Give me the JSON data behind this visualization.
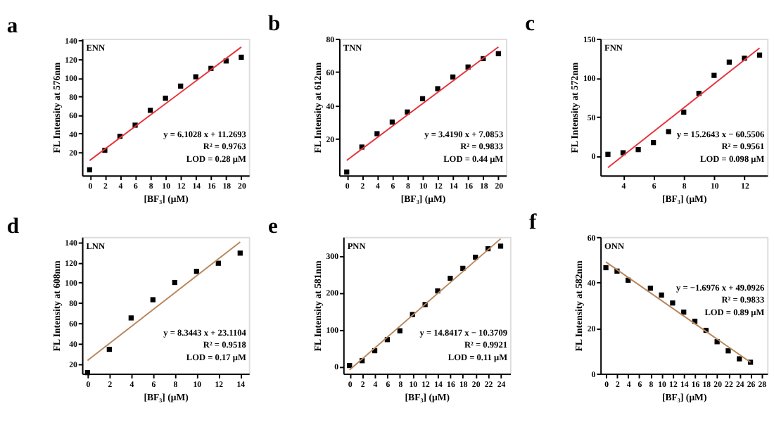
{
  "chart_data": [
    {
      "type": "scatter",
      "title": "a",
      "xlabel": "[BF₃] (μM)",
      "ylabel": "FL Intensity at 576nm",
      "grid": false,
      "xlim": [
        -1,
        21
      ],
      "ylim": [
        -5,
        142
      ],
      "xticks": [
        0,
        2,
        4,
        6,
        8,
        10,
        12,
        14,
        16,
        18,
        20
      ],
      "yticks": [
        20,
        40,
        60,
        80,
        100,
        120,
        140
      ],
      "x": [
        0,
        2,
        4,
        6,
        8,
        10,
        12,
        14,
        16,
        18,
        20
      ],
      "annotations": [
        "ENN",
        "y = 6.1028 x + 11.2693",
        "R² = 0.9763",
        "LOD = 0.28 μM"
      ],
      "series": [
        {
          "marker": "square",
          "color": "#000000",
          "values": [
            1,
            22,
            37,
            49,
            65,
            78,
            91,
            101,
            110,
            118,
            122
          ]
        },
        {
          "type": "line",
          "marker": "none",
          "line_style": "solid",
          "color": "#e8323c",
          "x": [
            0,
            20
          ],
          "values": [
            11,
            133
          ]
        }
      ]
    },
    {
      "type": "scatter",
      "title": "b",
      "xlabel": "[BF₃] (μM)",
      "ylabel": "FL Intensity at 612nm",
      "grid": false,
      "xlim": [
        -1,
        21
      ],
      "ylim": [
        -2,
        80
      ],
      "xticks": [
        0,
        2,
        4,
        6,
        8,
        10,
        12,
        14,
        16,
        18,
        20
      ],
      "yticks": [
        20,
        40,
        60,
        80
      ],
      "x": [
        0,
        2,
        4,
        6,
        8,
        10,
        12,
        14,
        16,
        18,
        20
      ],
      "annotations": [
        "TNN",
        "y = 3.4190 x + 7.0853",
        "R² = 0.9833",
        "LOD = 0.44 μM"
      ],
      "series": [
        {
          "marker": "square",
          "color": "#000000",
          "values": [
            0,
            15,
            23,
            30,
            36,
            44,
            50,
            57,
            63,
            68,
            71
          ]
        },
        {
          "type": "line",
          "marker": "none",
          "line_style": "solid",
          "color": "#e8323c",
          "x": [
            0,
            20
          ],
          "values": [
            7,
            75
          ]
        }
      ]
    },
    {
      "type": "scatter",
      "title": "c",
      "xlabel": "[BF₃] (μM)",
      "ylabel": "FL Intensity at 572nm",
      "grid": false,
      "xlim": [
        2.5,
        13.5
      ],
      "ylim": [
        -25,
        150
      ],
      "xticks": [
        4,
        6,
        8,
        10,
        12
      ],
      "yticks": [
        0,
        50,
        100,
        150
      ],
      "x": [
        3,
        4,
        5,
        6,
        7,
        8,
        9,
        10,
        11,
        12,
        13
      ],
      "annotations": [
        "FNN",
        "y = 15.2643 x − 60.5506",
        "R² = 0.9561",
        "LOD = 0.098 μM"
      ],
      "series": [
        {
          "marker": "square",
          "color": "#000000",
          "values": [
            2,
            4,
            8,
            17,
            31,
            56,
            80,
            103,
            120,
            125,
            129
          ]
        },
        {
          "type": "line",
          "marker": "none",
          "line_style": "solid",
          "color": "#e8323c",
          "x": [
            3,
            13
          ],
          "values": [
            -15,
            138
          ]
        }
      ]
    },
    {
      "type": "scatter",
      "title": "d",
      "xlabel": "[BF₃] (μM)",
      "ylabel": "FL Intensity at 608nm",
      "grid": false,
      "xlim": [
        -0.5,
        14.8
      ],
      "ylim": [
        10,
        145
      ],
      "xticks": [
        0,
        2,
        4,
        6,
        8,
        10,
        12,
        14
      ],
      "yticks": [
        20,
        40,
        60,
        80,
        100,
        120,
        140
      ],
      "x": [
        0,
        2,
        4,
        6,
        8,
        10,
        12,
        14
      ],
      "annotations": [
        "LNN",
        "y = 8.3443 x + 23.1104",
        "R² = 0.9518",
        "LOD = 0.17 μM"
      ],
      "series": [
        {
          "marker": "square",
          "color": "#000000",
          "values": [
            11,
            34,
            65,
            83,
            100,
            111,
            119,
            129
          ]
        },
        {
          "type": "line",
          "marker": "none",
          "line_style": "solid",
          "color": "#b8875c",
          "x": [
            0,
            14
          ],
          "values": [
            23,
            140
          ]
        }
      ]
    },
    {
      "type": "scatter",
      "title": "e",
      "xlabel": "[BF₃] (μM)",
      "ylabel": "FL Intensity at 581nm",
      "grid": false,
      "xlim": [
        -1,
        25.5
      ],
      "ylim": [
        -20,
        350
      ],
      "xticks": [
        0,
        2,
        4,
        6,
        8,
        10,
        12,
        14,
        16,
        18,
        20,
        22,
        24
      ],
      "yticks": [
        0,
        100,
        200,
        300
      ],
      "x": [
        0,
        2,
        4,
        6,
        8,
        10,
        12,
        14,
        16,
        18,
        20,
        22,
        24
      ],
      "annotations": [
        "PNN",
        "y = 14.8417 x − 10.3709",
        "R² = 0.9921",
        "LOD = 0.11 μM"
      ],
      "series": [
        {
          "marker": "square",
          "color": "#000000",
          "values": [
            2,
            15,
            42,
            72,
            96,
            140,
            167,
            204,
            238,
            265,
            295,
            318,
            325
          ]
        },
        {
          "type": "line",
          "marker": "none",
          "line_style": "solid",
          "color": "#b8875c",
          "x": [
            0,
            24
          ],
          "values": [
            -10,
            345
          ]
        }
      ]
    },
    {
      "type": "scatter",
      "title": "f",
      "xlabel": "[BF₃] (μM)",
      "ylabel": "FL Intensity at 582nm",
      "grid": false,
      "xlim": [
        -1,
        29
      ],
      "ylim": [
        0,
        60
      ],
      "xticks": [
        0,
        2,
        4,
        6,
        8,
        10,
        12,
        14,
        16,
        18,
        20,
        22,
        24,
        26,
        28
      ],
      "yticks": [
        0,
        20,
        40,
        60
      ],
      "x": [
        0,
        2,
        4,
        8,
        10,
        12,
        14,
        16,
        18,
        20,
        22,
        24,
        26
      ],
      "annotations": [
        "ONN",
        "y = −1.6976 x + 49.0926",
        "R² = 0.9833",
        "LOD = 0.89 μM"
      ],
      "series": [
        {
          "marker": "square",
          "color": "#000000",
          "values": [
            46.5,
            45,
            41,
            37.5,
            34.5,
            31,
            27,
            23,
            19,
            14,
            10,
            6.5,
            5
          ]
        },
        {
          "type": "line",
          "marker": "none",
          "line_style": "solid",
          "color": "#b8875c",
          "x": [
            0,
            26
          ],
          "values": [
            49,
            5
          ]
        }
      ]
    }
  ]
}
